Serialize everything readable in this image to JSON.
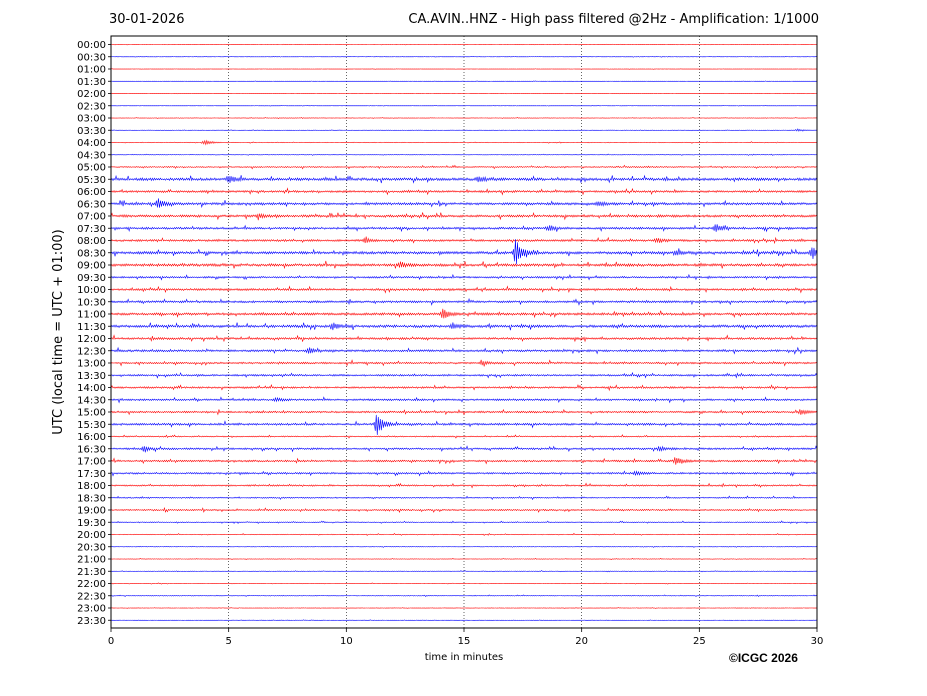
{
  "header": {
    "date": "30-01-2026",
    "title": "CA.AVIN..HNZ - High pass filtered @2Hz - Amplification: 1/1000"
  },
  "footer": {
    "copyright": "©ICGC 2026"
  },
  "chart_data": {
    "type": "line",
    "title": "CA.AVIN..HNZ - High pass filtered @2Hz - Amplification: 1/1000",
    "xlabel": "time in minutes",
    "ylabel": "UTC (local time = UTC + 01:00)",
    "xlim": [
      0,
      30
    ],
    "x_ticks": [
      "0",
      "5",
      "10",
      "15",
      "20",
      "25",
      "30"
    ],
    "grid": "vertical dotted lines at 5-minute intervals",
    "colors": {
      "even_rows": "#ff0000",
      "odd_rows": "#0000ff",
      "grid": "#000000"
    },
    "row_labels": [
      "00:00",
      "00:30",
      "01:00",
      "01:30",
      "02:00",
      "02:30",
      "03:00",
      "03:30",
      "04:00",
      "04:30",
      "05:00",
      "05:30",
      "06:00",
      "06:30",
      "07:00",
      "07:30",
      "08:00",
      "08:30",
      "09:00",
      "09:30",
      "10:00",
      "10:30",
      "11:00",
      "11:30",
      "12:00",
      "12:30",
      "13:00",
      "13:30",
      "14:00",
      "14:30",
      "15:00",
      "15:30",
      "16:00",
      "16:30",
      "17:00",
      "17:30",
      "18:00",
      "18:30",
      "19:00",
      "19:30",
      "20:00",
      "20:30",
      "21:00",
      "21:30",
      "22:00",
      "22:30",
      "23:00",
      "23:30"
    ],
    "noise_level": [
      0.05,
      0.05,
      0.04,
      0.04,
      0.04,
      0.04,
      0.06,
      0.06,
      0.1,
      0.08,
      0.2,
      0.45,
      0.35,
      0.4,
      0.4,
      0.35,
      0.35,
      0.45,
      0.45,
      0.3,
      0.35,
      0.35,
      0.4,
      0.45,
      0.35,
      0.35,
      0.3,
      0.3,
      0.3,
      0.3,
      0.3,
      0.35,
      0.2,
      0.3,
      0.3,
      0.3,
      0.25,
      0.2,
      0.25,
      0.15,
      0.12,
      0.08,
      0.08,
      0.08,
      0.08,
      0.1,
      0.05,
      0.05
    ],
    "events": [
      {
        "row": 7,
        "t": 29.2,
        "amp": 0.6
      },
      {
        "row": 8,
        "t": 4.0,
        "amp": 1.3
      },
      {
        "row": 11,
        "t": 5.0,
        "amp": 1.8
      },
      {
        "row": 11,
        "t": 15.6,
        "amp": 1.3
      },
      {
        "row": 13,
        "t": 2.0,
        "amp": 2.2
      },
      {
        "row": 13,
        "t": 20.7,
        "amp": 1.2
      },
      {
        "row": 14,
        "t": 6.3,
        "amp": 1.2
      },
      {
        "row": 15,
        "t": 18.6,
        "amp": 1.3
      },
      {
        "row": 15,
        "t": 25.7,
        "amp": 2.0
      },
      {
        "row": 16,
        "t": 10.8,
        "amp": 1.0
      },
      {
        "row": 16,
        "t": 23.2,
        "amp": 1.2
      },
      {
        "row": 17,
        "t": 17.2,
        "amp": 6.5
      },
      {
        "row": 17,
        "t": 24.0,
        "amp": 1.3
      },
      {
        "row": 17,
        "t": 29.8,
        "amp": 3.0
      },
      {
        "row": 18,
        "t": 12.3,
        "amp": 1.4
      },
      {
        "row": 22,
        "t": 14.1,
        "amp": 2.2
      },
      {
        "row": 23,
        "t": 9.4,
        "amp": 1.5
      },
      {
        "row": 23,
        "t": 14.5,
        "amp": 1.2
      },
      {
        "row": 25,
        "t": 8.4,
        "amp": 1.3
      },
      {
        "row": 26,
        "t": 15.8,
        "amp": 1.0
      },
      {
        "row": 29,
        "t": 7.0,
        "amp": 1.0
      },
      {
        "row": 30,
        "t": 29.3,
        "amp": 1.3
      },
      {
        "row": 31,
        "t": 11.3,
        "amp": 6.0
      },
      {
        "row": 33,
        "t": 1.4,
        "amp": 1.2
      },
      {
        "row": 33,
        "t": 23.3,
        "amp": 1.3
      },
      {
        "row": 34,
        "t": 24.0,
        "amp": 2.0
      },
      {
        "row": 35,
        "t": 22.3,
        "amp": 1.0
      }
    ]
  }
}
